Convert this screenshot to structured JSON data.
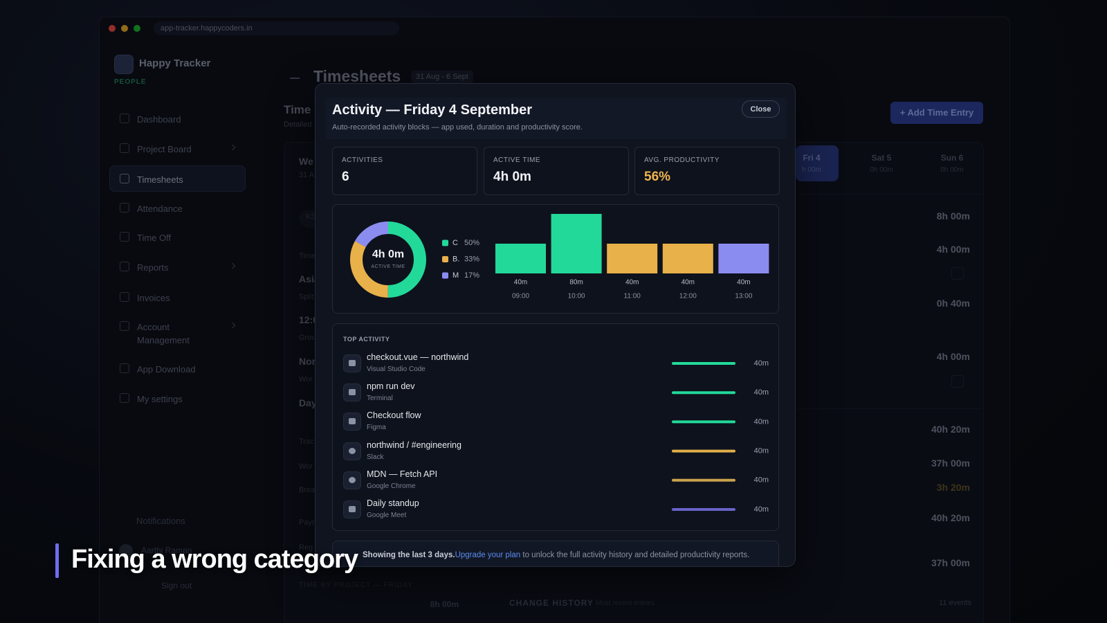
{
  "browser": {
    "url": "app-tracker.happycoders.in"
  },
  "sidebar": {
    "brand": "Happy Tracker",
    "tag": "PEOPLE",
    "nav": [
      "Dashboard",
      "Project Board",
      "Timesheets",
      "Attendance",
      "Time Off",
      "Reports",
      "Invoices",
      "Account Management",
      "App Download",
      "My settings"
    ],
    "notifications": "Notifications",
    "user": "Aarthi Raman",
    "signout": "Sign out"
  },
  "background": {
    "title": "Timesheets",
    "range": "31 Aug - 6 Sept",
    "section": "Time",
    "section_sub": "Detailed",
    "add_button": "+ Add Time Entry",
    "days": [
      {
        "name": "Fri 4",
        "hours": "h 00m"
      },
      {
        "name": "Sat 5",
        "hours": "0h 00m"
      },
      {
        "name": "Sun 6",
        "hours": "0h 00m"
      }
    ],
    "left_fragments": [
      "We",
      "31 A",
      "KS",
      "Time",
      "Asia",
      "Split",
      "12:0",
      "Grou",
      "Nor",
      "Wor",
      "Day",
      "Trac",
      "Wor",
      "Brea",
      "Payr",
      "Reg"
    ],
    "totals": [
      "8h 00m",
      "4h 00m",
      "0h 40m",
      "4h 00m",
      "40h 20m",
      "37h 00m",
      "3h 20m",
      "40h 20m",
      "37h 00m"
    ],
    "footer_label": "TIME BY PROJECT — FRIDAY",
    "footer_total": "8h 00m",
    "history": "CHANGE HISTORY",
    "history_sub": "Most recent entries",
    "history_count": "11 events"
  },
  "modal": {
    "title": "Activity — Friday 4 September",
    "subtitle": "Auto-recorded activity blocks — app used, duration and productivity score.",
    "close": "Close",
    "stats": [
      {
        "label": "ACTIVITIES",
        "value": "6"
      },
      {
        "label": "ACTIVE TIME",
        "value": "4h 0m"
      },
      {
        "label": "AVG. PRODUCTIVITY",
        "value": "56%"
      }
    ],
    "donut": {
      "type": "pie",
      "center_value": "4h 0m",
      "center_label": "ACTIVE TIME",
      "categories": [
        "C",
        "B.",
        "M"
      ],
      "values": [
        50,
        33,
        17
      ],
      "value_labels": [
        "50%",
        "33%",
        "17%"
      ],
      "colors": [
        "#22d99a",
        "#e8b14a",
        "#8b8cf0"
      ]
    },
    "bars": {
      "type": "bar",
      "categories": [
        "09:00",
        "10:00",
        "11:00",
        "12:00",
        "13:00"
      ],
      "values": [
        40,
        80,
        40,
        40,
        40
      ],
      "value_labels": [
        "40m",
        "80m",
        "40m",
        "40m",
        "40m"
      ],
      "colors": [
        "#22d99a",
        "#22d99a",
        "#e8b14a",
        "#e8b14a",
        "#8b8cf0"
      ]
    },
    "top_activity": {
      "heading": "TOP ACTIVITY",
      "items": [
        {
          "name": "checkout.vue — northwind",
          "app": "Visual Studio Code",
          "value": 40,
          "value_label": "40m",
          "color": "#22d99a"
        },
        {
          "name": "npm run dev",
          "app": "Terminal",
          "value": 40,
          "value_label": "40m",
          "color": "#22d99a"
        },
        {
          "name": "Checkout flow",
          "app": "Figma",
          "value": 40,
          "value_label": "40m",
          "color": "#22d99a"
        },
        {
          "name": "northwind / #engineering",
          "app": "Slack",
          "value": 40,
          "value_label": "40m",
          "color": "#e0ae4a"
        },
        {
          "name": "MDN — Fetch API",
          "app": "Google Chrome",
          "value": 40,
          "value_label": "40m",
          "color": "#c9a24d"
        },
        {
          "name": "Daily standup",
          "app": "Google Meet",
          "value": 40,
          "value_label": "40m",
          "color": "#6a63c9"
        }
      ]
    },
    "upsell": {
      "lead": "Showing the last 3 days.",
      "link": "Upgrade your plan",
      "rest": " to unlock the full activity history and detailed productivity reports."
    }
  },
  "caption": "Fixing a wrong category"
}
